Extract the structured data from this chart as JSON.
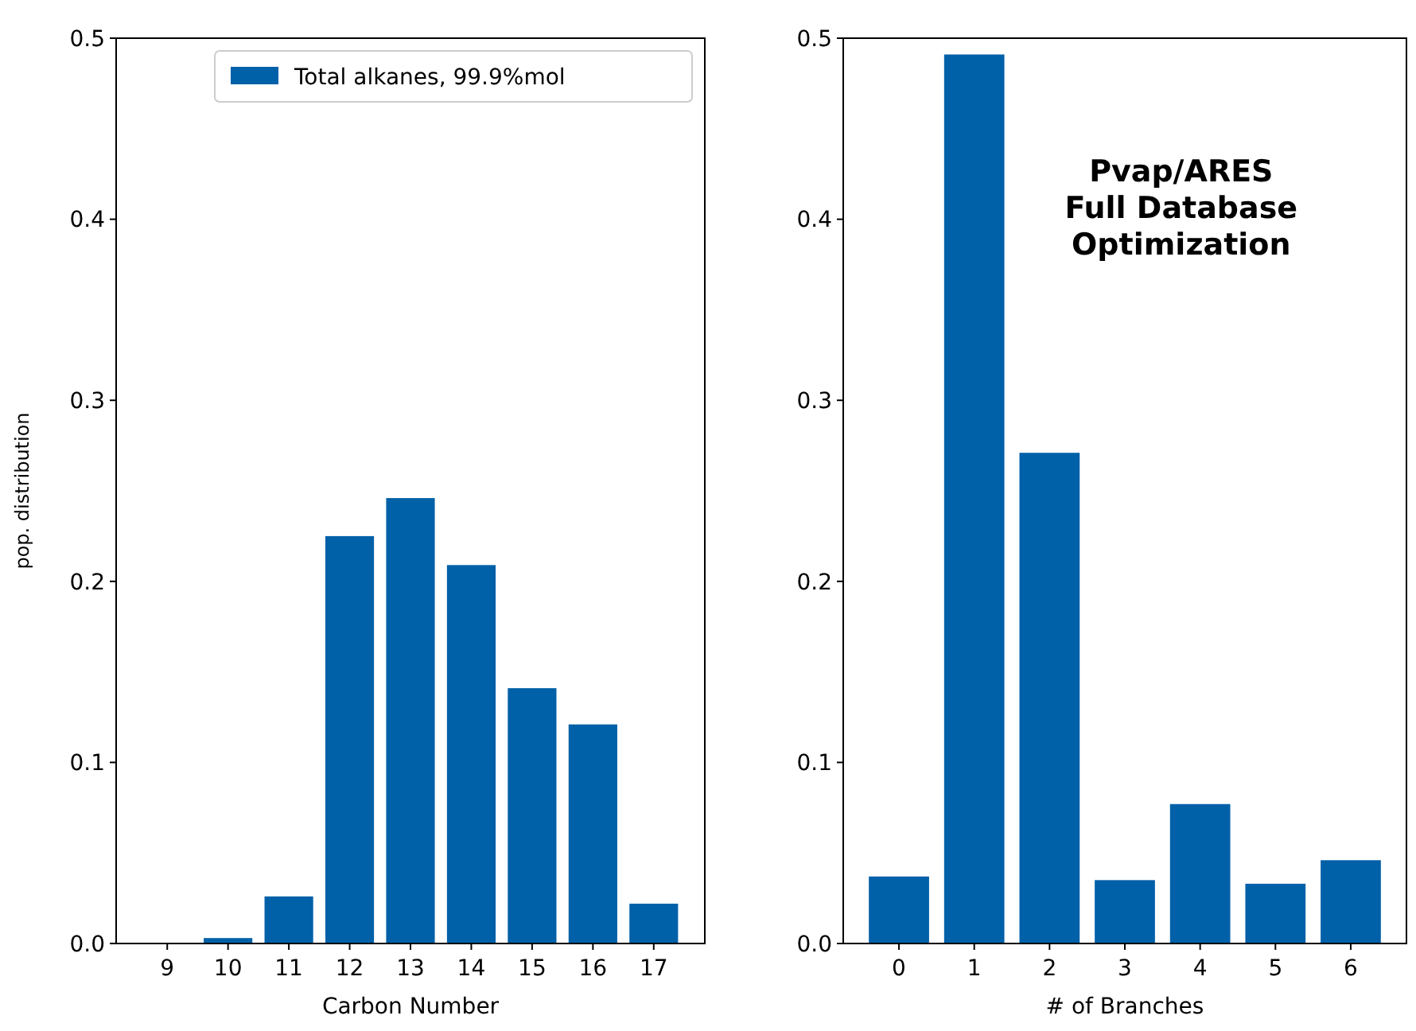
{
  "chart_data": [
    {
      "type": "bar",
      "categories": [
        "9",
        "10",
        "11",
        "12",
        "13",
        "14",
        "15",
        "16",
        "17"
      ],
      "series": [
        {
          "name": "Total alkanes, 99.9%mol",
          "color": "#0060a8",
          "values": [
            0,
            0.003,
            0.026,
            0.225,
            0.246,
            0.209,
            0.141,
            0.121,
            0.022
          ]
        }
      ],
      "xlabel": "Carbon Number",
      "ylabel": "pop. distribution",
      "ylim": [
        0,
        0.5
      ],
      "yticks": [
        {
          "value": 0,
          "label": "0.0"
        },
        0.1,
        0.2,
        0.3,
        0.4,
        0.5
      ],
      "legend": "top right"
    },
    {
      "type": "bar",
      "categories": [
        "0",
        "1",
        "2",
        "3",
        "4",
        "5",
        "6"
      ],
      "series": [
        {
          "color": "#0060a8",
          "values": [
            0.037,
            0.491,
            0.271,
            0.035,
            0.077,
            0.033,
            0.046
          ]
        }
      ],
      "xlabel": "# of Branches",
      "ylim": [
        0,
        0.5
      ],
      "yticks": [
        {
          "value": 0,
          "label": "0.0"
        },
        0.1,
        0.2,
        0.3,
        0.4,
        0.5
      ],
      "annotations": [
        "Pvap/ARES\nFull Database\nOptimization"
      ]
    }
  ]
}
